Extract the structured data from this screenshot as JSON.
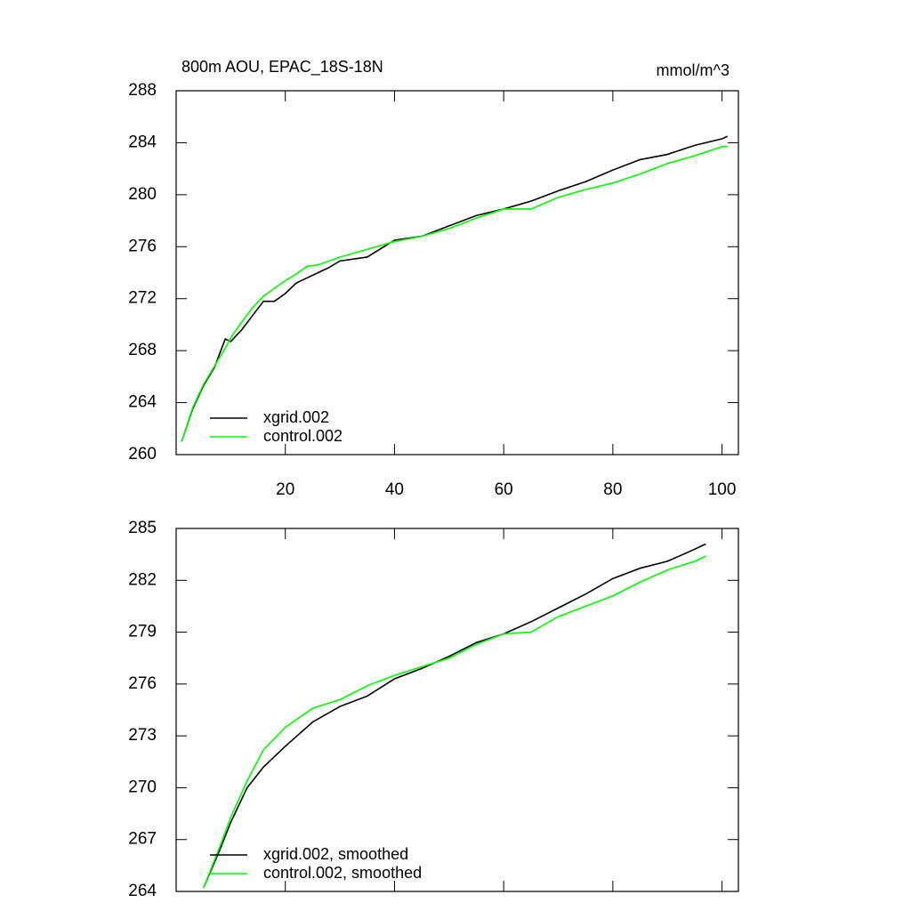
{
  "chart_data": [
    {
      "type": "line",
      "title": "800m AOU, EPAC_18S-18N",
      "units": "mmol/m^3",
      "x": [
        1,
        3,
        5,
        7,
        9,
        10,
        12,
        14,
        16,
        18,
        20,
        22,
        24,
        26,
        28,
        30,
        35,
        40,
        45,
        50,
        55,
        60,
        65,
        70,
        75,
        80,
        85,
        90,
        95,
        100,
        101
      ],
      "series": [
        {
          "name": "xgrid.002",
          "color": "#000000",
          "values": [
            261,
            263.5,
            265.3,
            266.7,
            268.9,
            268.7,
            269.6,
            270.7,
            271.8,
            271.8,
            272.4,
            273.2,
            273.6,
            274,
            274.4,
            274.9,
            275.2,
            276.5,
            276.8,
            277.6,
            278.4,
            278.9,
            279.5,
            280.3,
            281,
            281.9,
            282.7,
            283.1,
            283.8,
            284.3,
            284.5
          ]
        },
        {
          "name": "control.002",
          "color": "#00ff00",
          "values": [
            261,
            263.6,
            265.4,
            266.8,
            268.2,
            269,
            270.2,
            271.3,
            272.2,
            272.8,
            273.4,
            273.9,
            274.5,
            274.6,
            274.9,
            275.2,
            275.8,
            276.4,
            276.8,
            277.4,
            278.2,
            278.9,
            278.9,
            279.8,
            280.4,
            280.9,
            281.6,
            282.4,
            283,
            283.7,
            283.7
          ]
        }
      ],
      "xlim": [
        0,
        103
      ],
      "xticks": [
        20,
        40,
        60,
        80,
        100
      ],
      "xtick_labels": true,
      "ylim": [
        260,
        288
      ],
      "yticks": [
        260,
        264,
        268,
        272,
        276,
        280,
        284,
        288
      ],
      "legend": "lower left"
    },
    {
      "type": "line",
      "x": [
        5,
        8,
        10,
        13,
        16,
        20,
        25,
        30,
        35,
        40,
        45,
        50,
        55,
        60,
        65,
        70,
        75,
        80,
        85,
        90,
        95,
        97
      ],
      "series": [
        {
          "name": "xgrid.002, smoothed",
          "color": "#000000",
          "values": [
            264.2,
            266.4,
            268,
            270,
            271.2,
            272.4,
            273.8,
            274.7,
            275.3,
            276.3,
            276.9,
            277.6,
            278.4,
            278.9,
            279.6,
            280.4,
            281.2,
            282.1,
            282.7,
            283.1,
            283.8,
            284.1
          ]
        },
        {
          "name": "control.002, smoothed",
          "color": "#00ff00",
          "values": [
            264.2,
            266.6,
            268.3,
            270.4,
            272.2,
            273.5,
            274.6,
            275.1,
            275.9,
            276.5,
            277,
            277.5,
            278.3,
            278.9,
            279,
            279.9,
            280.5,
            281.1,
            281.9,
            282.6,
            283.1,
            283.4
          ]
        }
      ],
      "xlim": [
        0,
        103
      ],
      "xticks": [
        20,
        40,
        60,
        80,
        100
      ],
      "xtick_labels": false,
      "ylim": [
        264,
        285
      ],
      "yticks": [
        264,
        267,
        270,
        273,
        276,
        279,
        282,
        285
      ],
      "legend": "lower left"
    }
  ]
}
